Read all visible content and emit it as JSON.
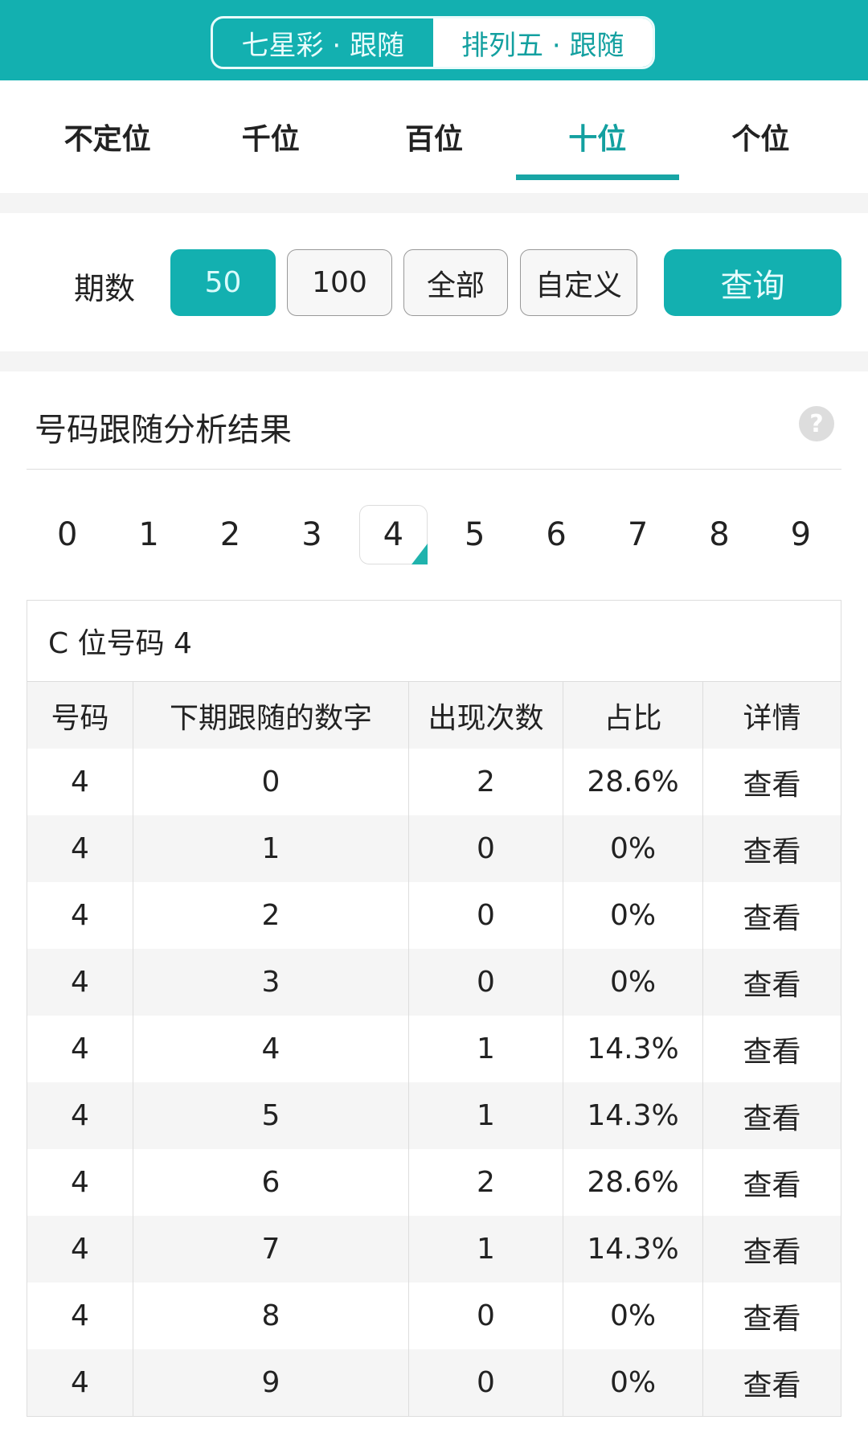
{
  "header": {
    "segments": [
      {
        "label": "七星彩 · 跟随",
        "active": false
      },
      {
        "label": "排列五 · 跟随",
        "active": true
      }
    ]
  },
  "position_tabs": [
    {
      "label": "不定位"
    },
    {
      "label": "千位"
    },
    {
      "label": "百位"
    },
    {
      "label": "十位",
      "active": true
    },
    {
      "label": "个位"
    }
  ],
  "period": {
    "label": "期数",
    "options": [
      "50",
      "100",
      "全部",
      "自定义"
    ],
    "selected": "50",
    "query_label": "查询"
  },
  "result": {
    "title": "号码跟随分析结果",
    "help_icon": "question-icon"
  },
  "digits": {
    "values": [
      "0",
      "1",
      "2",
      "3",
      "4",
      "5",
      "6",
      "7",
      "8",
      "9"
    ],
    "selected": "4"
  },
  "table": {
    "caption": "C 位号码 4",
    "headers": [
      "号码",
      "下期跟随的数字",
      "出现次数",
      "占比",
      "详情"
    ],
    "rows": [
      [
        "4",
        "0",
        "2",
        "28.6%",
        "查看"
      ],
      [
        "4",
        "1",
        "0",
        "0%",
        "查看"
      ],
      [
        "4",
        "2",
        "0",
        "0%",
        "查看"
      ],
      [
        "4",
        "3",
        "0",
        "0%",
        "查看"
      ],
      [
        "4",
        "4",
        "1",
        "14.3%",
        "查看"
      ],
      [
        "4",
        "5",
        "1",
        "14.3%",
        "查看"
      ],
      [
        "4",
        "6",
        "2",
        "28.6%",
        "查看"
      ],
      [
        "4",
        "7",
        "1",
        "14.3%",
        "查看"
      ],
      [
        "4",
        "8",
        "0",
        "0%",
        "查看"
      ],
      [
        "4",
        "9",
        "0",
        "0%",
        "查看"
      ]
    ]
  },
  "colors": {
    "accent": "#13b0b0"
  }
}
